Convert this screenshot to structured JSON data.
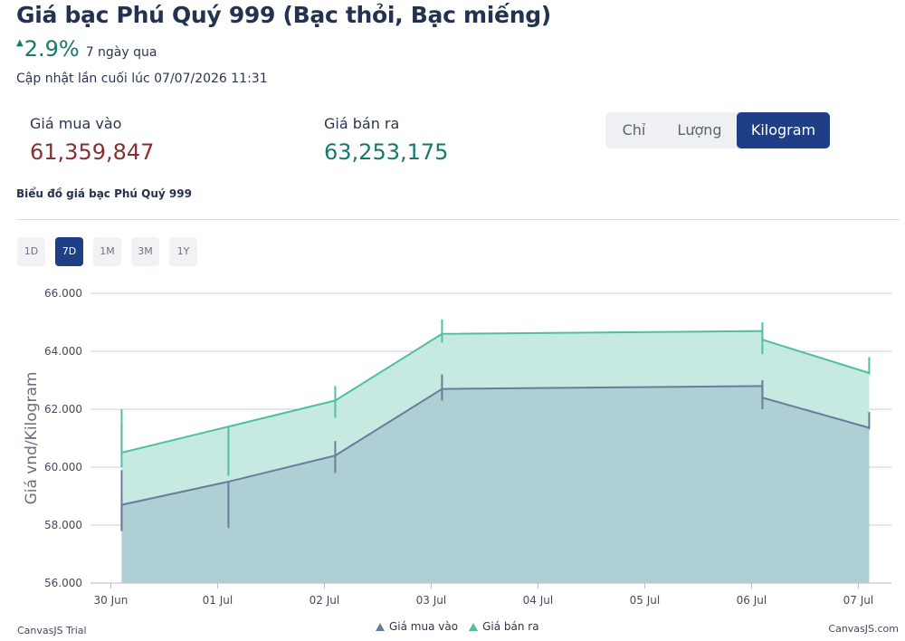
{
  "header": {
    "title": "Giá bạc Phú Quý 999 (Bạc thỏi, Bạc miếng)",
    "change_arrow": "▲",
    "change_value": "2.9%",
    "change_period": "7 ngày qua",
    "updated": "Cập nhật lần cuối lúc 07/07/2026 11:31"
  },
  "prices": {
    "buy_label": "Giá mua vào",
    "buy_value": "61,359,847",
    "sell_label": "Giá bán ra",
    "sell_value": "63,253,175"
  },
  "unit_toggle": {
    "options": [
      "Chỉ",
      "Lượng",
      "Kilogram"
    ],
    "selected": "Kilogram"
  },
  "chart_heading": "Biểu đồ giá bạc Phú Quý 999",
  "range_buttons": {
    "options": [
      "1D",
      "7D",
      "1M",
      "3M",
      "1Y"
    ],
    "selected": "7D"
  },
  "chart_data": {
    "type": "area",
    "ylabel": "Giá vnd/Kilogram",
    "xlabel": "",
    "ylim": [
      56000,
      66000
    ],
    "yticks": [
      "56.000",
      "58.000",
      "60.000",
      "62.000",
      "64.000",
      "66.000"
    ],
    "ytick_values": [
      56000,
      58000,
      60000,
      62000,
      64000,
      66000
    ],
    "xlim": [
      "2026-06-30",
      "2026-07-07T12:00"
    ],
    "xticks": [
      "30 Jun",
      "01 Jul",
      "02 Jul",
      "03 Jul",
      "04 Jul",
      "05 Jul",
      "06 Jul",
      "07 Jul"
    ],
    "xtick_dates": [
      "2026-06-30",
      "2026-07-01",
      "2026-07-02",
      "2026-07-03",
      "2026-07-04",
      "2026-07-05",
      "2026-07-06",
      "2026-07-07"
    ],
    "x": [
      "2026-06-30T07:00",
      "2026-07-01T07:00",
      "2026-07-02T07:00",
      "2026-07-03T07:00",
      "2026-07-06T07:00",
      "2026-07-07T07:00"
    ],
    "series": [
      {
        "name": "Giá mua vào",
        "color": "#667e9c",
        "fill": "#aecfd3",
        "values": [
          {
            "open": 57800,
            "high": 59900,
            "low": 57800,
            "close": 58700
          },
          {
            "open": 59500,
            "high": 59500,
            "low": 57900,
            "close": 59500
          },
          {
            "open": 60400,
            "high": 60900,
            "low": 59800,
            "close": 60400
          },
          {
            "open": 62700,
            "high": 63200,
            "low": 62300,
            "close": 62700
          },
          {
            "open": 62800,
            "high": 63000,
            "low": 62000,
            "close": 62400
          },
          {
            "open": 61360,
            "high": 61900,
            "low": 61300,
            "close": 61360
          }
        ]
      },
      {
        "name": "Giá bán ra",
        "color": "#4fbfa0",
        "fill": "#c6eae2",
        "values": [
          {
            "open": 61500,
            "high": 62000,
            "low": 60000,
            "close": 60500
          },
          {
            "open": 61400,
            "high": 61400,
            "low": 59700,
            "close": 61400
          },
          {
            "open": 62300,
            "high": 62800,
            "low": 61700,
            "close": 62300
          },
          {
            "open": 64600,
            "high": 65100,
            "low": 64300,
            "close": 64600
          },
          {
            "open": 64700,
            "high": 65000,
            "low": 63900,
            "close": 64400
          },
          {
            "open": 63250,
            "high": 63800,
            "low": 63200,
            "close": 63250
          }
        ]
      }
    ],
    "legend_position": "bottom-center",
    "grid": true
  },
  "footer": {
    "credit_left": "CanvasJS Trial",
    "credit_right": "CanvasJS.com"
  }
}
